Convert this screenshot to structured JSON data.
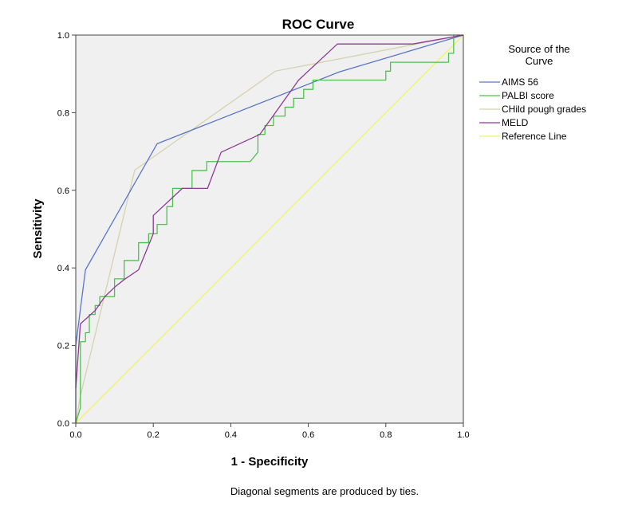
{
  "chart_data": {
    "type": "line",
    "title": "ROC Curve",
    "xlabel": "1 - Specificity",
    "ylabel": "Sensitivity",
    "xlim": [
      0,
      1
    ],
    "ylim": [
      0,
      1
    ],
    "x_ticks": [
      "0.0",
      "0.2",
      "0.4",
      "0.6",
      "0.8",
      "1.0"
    ],
    "y_ticks": [
      "0.0",
      "0.2",
      "0.4",
      "0.6",
      "0.8",
      "1.0"
    ],
    "grid": false,
    "background_color": "#f0f0f0",
    "legend": {
      "title_lines": [
        "Source of the",
        "Curve"
      ],
      "placement": "right"
    },
    "footnote": "Diagonal segments are produced by ties.",
    "series": [
      {
        "name": "AIMS 56",
        "color": "#5b77c4",
        "points": [
          [
            0,
            0
          ],
          [
            0,
            0.2
          ],
          [
            0.025,
            0.395
          ],
          [
            0.21,
            0.72
          ],
          [
            0.68,
            0.905
          ],
          [
            1,
            1
          ]
        ]
      },
      {
        "name": "PALBI score",
        "color": "#4cc24c",
        "points": [
          [
            0,
            0
          ],
          [
            0.012,
            0.04
          ],
          [
            0.012,
            0.21
          ],
          [
            0.025,
            0.21
          ],
          [
            0.025,
            0.233
          ],
          [
            0.035,
            0.233
          ],
          [
            0.035,
            0.28
          ],
          [
            0.05,
            0.28
          ],
          [
            0.05,
            0.303
          ],
          [
            0.062,
            0.303
          ],
          [
            0.062,
            0.326
          ],
          [
            0.1,
            0.326
          ],
          [
            0.1,
            0.372
          ],
          [
            0.125,
            0.372
          ],
          [
            0.125,
            0.419
          ],
          [
            0.162,
            0.419
          ],
          [
            0.162,
            0.465
          ],
          [
            0.188,
            0.465
          ],
          [
            0.188,
            0.488
          ],
          [
            0.21,
            0.488
          ],
          [
            0.21,
            0.512
          ],
          [
            0.235,
            0.512
          ],
          [
            0.235,
            0.558
          ],
          [
            0.25,
            0.558
          ],
          [
            0.25,
            0.605
          ],
          [
            0.288,
            0.605
          ],
          [
            0.288,
            0.605
          ],
          [
            0.3,
            0.605
          ],
          [
            0.3,
            0.651
          ],
          [
            0.338,
            0.651
          ],
          [
            0.338,
            0.674
          ],
          [
            0.45,
            0.674
          ],
          [
            0.47,
            0.698
          ],
          [
            0.47,
            0.744
          ],
          [
            0.488,
            0.744
          ],
          [
            0.488,
            0.767
          ],
          [
            0.51,
            0.767
          ],
          [
            0.51,
            0.791
          ],
          [
            0.54,
            0.791
          ],
          [
            0.54,
            0.814
          ],
          [
            0.562,
            0.814
          ],
          [
            0.562,
            0.837
          ],
          [
            0.588,
            0.837
          ],
          [
            0.588,
            0.86
          ],
          [
            0.612,
            0.86
          ],
          [
            0.612,
            0.884
          ],
          [
            0.8,
            0.884
          ],
          [
            0.8,
            0.907
          ],
          [
            0.812,
            0.907
          ],
          [
            0.812,
            0.93
          ],
          [
            0.962,
            0.93
          ],
          [
            0.962,
            0.953
          ],
          [
            0.975,
            0.953
          ],
          [
            0.975,
            1
          ],
          [
            1,
            1
          ]
        ]
      },
      {
        "name": "CHild pough grades",
        "color": "#d6d2b0",
        "points": [
          [
            0,
            0
          ],
          [
            0.012,
            0.07
          ],
          [
            0.152,
            0.652
          ],
          [
            0.515,
            0.907
          ],
          [
            1,
            1
          ]
        ]
      },
      {
        "name": "MELD",
        "color": "#8e3a96",
        "points": [
          [
            0,
            0.09
          ],
          [
            0.012,
            0.256
          ],
          [
            0.05,
            0.29
          ],
          [
            0.075,
            0.326
          ],
          [
            0.1,
            0.35
          ],
          [
            0.125,
            0.37
          ],
          [
            0.162,
            0.395
          ],
          [
            0.2,
            0.488
          ],
          [
            0.2,
            0.535
          ],
          [
            0.275,
            0.605
          ],
          [
            0.34,
            0.605
          ],
          [
            0.375,
            0.698
          ],
          [
            0.475,
            0.744
          ],
          [
            0.575,
            0.884
          ],
          [
            0.675,
            0.977
          ],
          [
            0.87,
            0.977
          ],
          [
            1,
            1
          ]
        ]
      },
      {
        "name": "Reference Line",
        "color": "#f2f26a",
        "points": [
          [
            0,
            0
          ],
          [
            1,
            1
          ]
        ]
      }
    ]
  }
}
